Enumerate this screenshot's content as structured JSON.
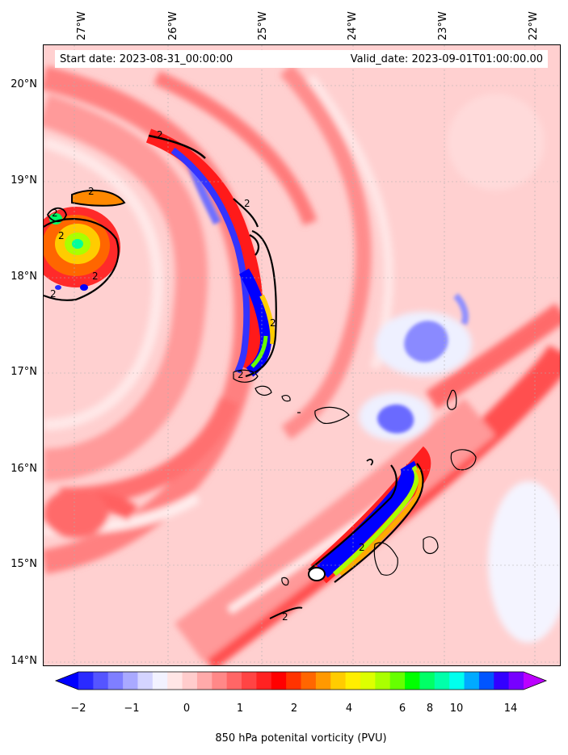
{
  "header": {
    "start_date": "Start date: 2023-08-31_00:00:00",
    "valid_date": "Valid_date: 2023-09-01T01:00:00.00"
  },
  "axes": {
    "lon_labels": [
      "27°W",
      "26°W",
      "25°W",
      "24°W",
      "23°W",
      "22°W"
    ],
    "lat_labels": [
      "20°N",
      "19°N",
      "18°N",
      "17°N",
      "16°N",
      "15°N",
      "14°N"
    ]
  },
  "contour_label": "2",
  "colorbar": {
    "label": "850 hPa potenital vorticity (PVU)",
    "ticks": [
      "−2",
      "−1",
      "0",
      "1",
      "2",
      "4",
      "6",
      "8",
      "10",
      "14"
    ],
    "colors": [
      "#0000ff",
      "#2a2aff",
      "#5555ff",
      "#7f7fff",
      "#a9a9ff",
      "#d4d4ff",
      "#f2f2ff",
      "#ffe6e6",
      "#ffcccc",
      "#ffaaaa",
      "#ff8888",
      "#ff6666",
      "#ff4444",
      "#ff2222",
      "#ff0000",
      "#ff3300",
      "#ff6600",
      "#ff9900",
      "#ffcc00",
      "#ffee00",
      "#ddff00",
      "#aaff00",
      "#66ff00",
      "#00ff00",
      "#00ff66",
      "#00ffaa",
      "#00ffee",
      "#00aaff",
      "#0055ff",
      "#3300ff",
      "#7700ff",
      "#bb00ff"
    ]
  }
}
